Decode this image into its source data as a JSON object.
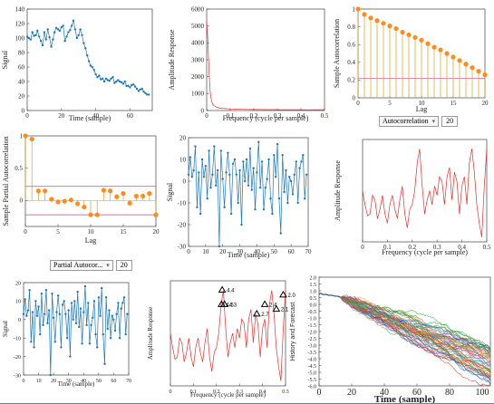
{
  "controls": {
    "acf_select": "Autocorrelation",
    "acf_lags": "20",
    "pacf_select": "Partial Autocor...",
    "pacf_lags": "20"
  },
  "chart_data": [
    {
      "id": "signal1",
      "type": "line",
      "xlabel": "Time (sample)",
      "ylabel": "Signal",
      "xlim": [
        0,
        73
      ],
      "ylim": [
        0,
        140
      ],
      "xticks": [
        0,
        20,
        40,
        60
      ],
      "yticks": [
        0,
        20,
        40,
        60,
        80,
        100,
        120,
        140
      ],
      "color": "#1f77b4",
      "marker": "dot",
      "values": [
        102,
        100,
        98,
        108,
        103,
        104,
        110,
        102,
        96,
        90,
        108,
        98,
        112,
        101,
        88,
        98,
        108,
        114,
        112,
        110,
        115,
        117,
        96,
        102,
        108,
        111,
        117,
        124,
        112,
        100,
        104,
        112,
        104,
        93,
        86,
        76,
        68,
        62,
        60,
        56,
        50,
        46,
        48,
        43,
        44,
        40,
        44,
        42,
        41,
        44,
        46,
        38,
        40,
        42,
        40,
        39,
        37,
        40,
        34,
        34,
        32,
        35,
        36,
        33,
        30,
        27,
        29,
        30,
        26,
        24,
        22,
        22
      ]
    },
    {
      "id": "amp1",
      "type": "line",
      "xlabel": "Frequency (cycle per sample)",
      "ylabel": "Amplitude Response",
      "xlim": [
        0,
        0.5
      ],
      "ylim": [
        0,
        6000
      ],
      "xticks": [
        0,
        0.1,
        0.2,
        0.3,
        0.4,
        0.5
      ],
      "yticks": [
        0,
        1000,
        2000,
        3000,
        4000,
        5000,
        6000
      ],
      "color": "#e03030",
      "x": [
        0,
        0.005,
        0.01,
        0.015,
        0.02,
        0.025,
        0.03,
        0.04,
        0.05,
        0.06,
        0.08,
        0.1,
        0.12,
        0.15,
        0.18,
        0.2,
        0.22,
        0.25,
        0.28,
        0.3,
        0.33,
        0.36,
        0.4,
        0.43,
        0.46,
        0.5
      ],
      "values": [
        5300,
        4200,
        2300,
        1100,
        600,
        380,
        300,
        220,
        160,
        130,
        110,
        90,
        80,
        70,
        65,
        60,
        58,
        55,
        52,
        50,
        48,
        50,
        47,
        45,
        48,
        46
      ]
    },
    {
      "id": "acf",
      "type": "stem",
      "xlabel": "Lag",
      "ylabel": "Sample Autocorrelation",
      "xlim": [
        0,
        20
      ],
      "ylim": [
        0,
        1
      ],
      "xticks": [
        0,
        5,
        10,
        15,
        20
      ],
      "yticks": [
        0,
        0.2,
        0.4,
        0.6,
        0.8,
        1
      ],
      "stem_color": "#d4a020",
      "marker_color": "#ff8c1a",
      "conf_bound": 0.22,
      "conf_color": "#d04090",
      "values": [
        1.0,
        0.94,
        0.9,
        0.87,
        0.84,
        0.81,
        0.78,
        0.74,
        0.71,
        0.68,
        0.65,
        0.61,
        0.57,
        0.54,
        0.5,
        0.46,
        0.42,
        0.38,
        0.34,
        0.3,
        0.26
      ]
    },
    {
      "id": "pacf",
      "type": "stem",
      "xlabel": "Lag",
      "ylabel": "Sample Partial Autocorrelation",
      "xlim": [
        0,
        20
      ],
      "ylim": [
        -0.4,
        1
      ],
      "xticks": [
        0,
        5,
        10,
        15,
        20
      ],
      "yticks": [
        0,
        0.5,
        1
      ],
      "stem_color": "#d4a020",
      "marker_color": "#ff8c1a",
      "conf_bound": 0.22,
      "conf_color": "#d04090",
      "values": [
        1.0,
        0.95,
        0.15,
        0.15,
        0.02,
        -0.02,
        -0.01,
        0.01,
        -0.05,
        -0.1,
        -0.22,
        -0.22,
        0.16,
        0.15,
        0.06,
        0.11,
        -0.04,
        0.07,
        0.07,
        0.11,
        -0.22
      ]
    },
    {
      "id": "signal2",
      "type": "line",
      "xlabel": "Time (sample)",
      "ylabel": "Signal",
      "xlim": [
        0,
        70
      ],
      "ylim": [
        -30,
        20
      ],
      "xticks": [
        0,
        10,
        20,
        30,
        40,
        50,
        60,
        70
      ],
      "yticks": [
        -30,
        -20,
        -10,
        0,
        10,
        20
      ],
      "color": "#1f77b4",
      "marker": "dot",
      "values": [
        3,
        11,
        2,
        5,
        16,
        -12,
        4,
        -15,
        10,
        2,
        7,
        -8,
        14,
        -3,
        3,
        16,
        -2,
        5,
        -30,
        14,
        1,
        -12,
        4,
        13,
        3,
        -15,
        8,
        10,
        3,
        -10,
        5,
        -20,
        9,
        0,
        10,
        -2,
        15,
        -4,
        6,
        -13,
        4,
        18,
        -3,
        9,
        -13,
        -3,
        1,
        10,
        -8,
        -15,
        12,
        2,
        17,
        -8,
        -24,
        12,
        -5,
        5,
        -10,
        2,
        0,
        -6,
        3,
        9,
        -10,
        6,
        9,
        12,
        -8,
        3
      ]
    },
    {
      "id": "amp2",
      "type": "line",
      "xlabel": "Frequency (cycle per sample)",
      "ylabel": "Amplitude Response",
      "xlim": [
        0,
        0.5
      ],
      "ylim": [
        0,
        110
      ],
      "xticks": [
        0,
        0.1,
        0.2,
        0.3,
        0.4,
        0.5
      ],
      "yticks": [],
      "color": "#e03030",
      "x": [
        0,
        0.01,
        0.02,
        0.03,
        0.04,
        0.05,
        0.06,
        0.07,
        0.08,
        0.09,
        0.1,
        0.11,
        0.12,
        0.13,
        0.14,
        0.15,
        0.16,
        0.17,
        0.18,
        0.19,
        0.2,
        0.21,
        0.22,
        0.23,
        0.24,
        0.25,
        0.26,
        0.27,
        0.28,
        0.29,
        0.3,
        0.31,
        0.32,
        0.33,
        0.34,
        0.35,
        0.36,
        0.37,
        0.38,
        0.39,
        0.4,
        0.41,
        0.42,
        0.43,
        0.44,
        0.45,
        0.46,
        0.47,
        0.48,
        0.49,
        0.5
      ],
      "values": [
        55,
        40,
        28,
        30,
        50,
        45,
        25,
        35,
        50,
        30,
        20,
        40,
        50,
        35,
        25,
        45,
        60,
        30,
        15,
        35,
        40,
        55,
        85,
        100,
        60,
        30,
        45,
        55,
        40,
        60,
        50,
        70,
        65,
        40,
        70,
        80,
        45,
        75,
        65,
        30,
        60,
        70,
        40,
        85,
        100,
        75,
        40,
        20,
        5,
        60,
        100
      ]
    },
    {
      "id": "signal3",
      "type": "line",
      "xlabel": "Time (sample)",
      "ylabel": "Signal",
      "xlim": [
        0,
        70
      ],
      "ylim": [
        -30,
        20
      ],
      "xticks": [
        0,
        10,
        20,
        30,
        40,
        50,
        60,
        70
      ],
      "yticks": [
        -30,
        -20,
        -10,
        0,
        10,
        20
      ],
      "color": "#1f77b4",
      "marker": "dot",
      "values": [
        3,
        11,
        2,
        5,
        16,
        -12,
        4,
        -15,
        10,
        2,
        7,
        -8,
        14,
        -3,
        3,
        16,
        -2,
        5,
        -30,
        14,
        1,
        -12,
        4,
        13,
        3,
        -15,
        8,
        10,
        3,
        -10,
        5,
        -20,
        9,
        0,
        10,
        -2,
        15,
        -4,
        6,
        -13,
        4,
        18,
        -3,
        9,
        -13,
        -3,
        1,
        10,
        -8,
        -15,
        12,
        2,
        17,
        -8,
        -24,
        12,
        -5,
        5,
        -10,
        2,
        0,
        -6,
        3,
        9,
        -10,
        6,
        9,
        12,
        -8,
        3
      ]
    },
    {
      "id": "amp3",
      "type": "line",
      "xlabel": "Frequency (cycle per sample)",
      "ylabel": "Amplitude Response",
      "xlim": [
        0,
        0.5
      ],
      "ylim": [
        0,
        110
      ],
      "xticks": [
        0,
        0.1,
        0.2,
        0.3,
        0.4,
        0.5
      ],
      "yticks": [],
      "color": "#e03030",
      "x": [
        0,
        0.01,
        0.02,
        0.03,
        0.04,
        0.05,
        0.06,
        0.07,
        0.08,
        0.09,
        0.1,
        0.11,
        0.12,
        0.13,
        0.14,
        0.15,
        0.16,
        0.17,
        0.18,
        0.19,
        0.2,
        0.21,
        0.22,
        0.23,
        0.24,
        0.25,
        0.26,
        0.27,
        0.28,
        0.29,
        0.3,
        0.31,
        0.32,
        0.33,
        0.34,
        0.35,
        0.36,
        0.37,
        0.38,
        0.39,
        0.4,
        0.41,
        0.42,
        0.43,
        0.44,
        0.45,
        0.46,
        0.47,
        0.48,
        0.49,
        0.5
      ],
      "values": [
        55,
        40,
        28,
        30,
        50,
        45,
        25,
        35,
        50,
        30,
        20,
        40,
        50,
        35,
        25,
        45,
        60,
        30,
        15,
        35,
        40,
        55,
        85,
        100,
        60,
        30,
        45,
        55,
        40,
        60,
        50,
        70,
        65,
        40,
        70,
        80,
        45,
        75,
        65,
        30,
        60,
        70,
        40,
        85,
        100,
        75,
        40,
        20,
        5,
        60,
        100
      ],
      "peaks": [
        {
          "x": 0.225,
          "y": 100,
          "label": "4.4"
        },
        {
          "x": 0.222,
          "y": 85,
          "label": "4.5"
        },
        {
          "x": 0.235,
          "y": 85,
          "label": "4.3"
        },
        {
          "x": 0.375,
          "y": 75,
          "label": "2.7"
        },
        {
          "x": 0.41,
          "y": 85,
          "label": "2.4"
        },
        {
          "x": 0.46,
          "y": 80,
          "label": "2.1"
        },
        {
          "x": 0.49,
          "y": 95,
          "label": "2.0"
        }
      ]
    },
    {
      "id": "forecast",
      "type": "line",
      "xlabel": "Time (sample)",
      "ylabel": "History and Forecast",
      "xlim": [
        0,
        105
      ],
      "ylim": [
        -6,
        2
      ],
      "xticks": [
        0,
        20,
        40,
        60,
        80,
        100
      ],
      "yticks": [
        -6,
        -5.5,
        -5,
        -4.5,
        -4,
        -3.5,
        -3,
        -2.5,
        -2,
        -1.5,
        -1,
        -0.5,
        0,
        0.5,
        1,
        1.5,
        2
      ],
      "ytick_labels": [
        "-6.0",
        "-5.5",
        "-5.0",
        "-4.5",
        "-4.0",
        "-3.5",
        "-3.0",
        "-2.5",
        "-2.0",
        "-1.5",
        "-1.0",
        "-0.5",
        "0.0",
        "0.5",
        "1.0",
        "1.5",
        "2.0"
      ],
      "history_end": 13,
      "history_start_value": 0.8,
      "end_center": -4.5,
      "end_spread": 1.4,
      "series_count": 60,
      "colors": [
        "#1f77b4",
        "#ff7f0e",
        "#2ca02c",
        "#d62728",
        "#9467bd",
        "#8c564b",
        "#e377c2",
        "#7f7f7f",
        "#bcbd22",
        "#17becf",
        "#3b5bdb",
        "#f08c00",
        "#37b24d",
        "#c92a2a",
        "#862e9c",
        "#0ca678",
        "#e64980",
        "#5c940d",
        "#1971c2",
        "#f76707"
      ]
    }
  ]
}
